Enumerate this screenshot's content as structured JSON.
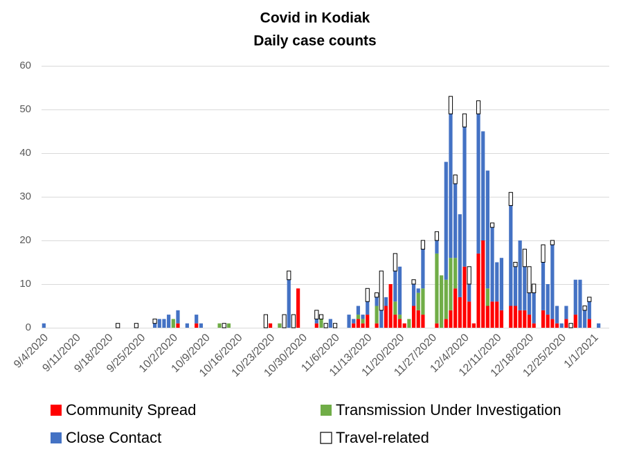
{
  "chart_data": {
    "type": "stacked_bar",
    "title": "Covid in Kodiak",
    "subtitle": "Daily case counts",
    "categories": [
      "9/4/2020",
      null,
      null,
      null,
      null,
      null,
      null,
      "9/11/2020",
      null,
      null,
      null,
      null,
      null,
      null,
      "9/18/2020",
      null,
      null,
      null,
      null,
      null,
      null,
      "9/25/2020",
      null,
      null,
      null,
      null,
      null,
      null,
      "10/2/2020",
      null,
      null,
      null,
      null,
      null,
      null,
      "10/9/2020",
      null,
      null,
      null,
      null,
      null,
      null,
      "10/16/2020",
      null,
      null,
      null,
      null,
      null,
      null,
      "10/23/2020",
      null,
      null,
      null,
      null,
      null,
      null,
      "10/30/2020",
      null,
      null,
      null,
      null,
      null,
      null,
      "11/6/2020",
      null,
      null,
      null,
      null,
      null,
      null,
      "11/13/2020",
      null,
      null,
      null,
      null,
      null,
      null,
      "11/20/2020",
      null,
      null,
      null,
      null,
      null,
      null,
      "11/27/2020",
      null,
      null,
      null,
      null,
      null,
      null,
      "12/4/2020",
      null,
      null,
      null,
      null,
      null,
      null,
      "12/11/2020",
      null,
      null,
      null,
      null,
      null,
      null,
      "12/18/2020",
      null,
      null,
      null,
      null,
      null,
      null,
      "12/25/2020",
      null,
      null,
      null,
      null,
      null,
      null,
      "1/1/2021",
      null
    ],
    "series": [
      {
        "name": "Community Spread",
        "color": "#ff0000",
        "values": [
          0,
          0,
          0,
          0,
          0,
          0,
          0,
          0,
          0,
          0,
          0,
          0,
          0,
          0,
          0,
          0,
          0,
          0,
          0,
          0,
          0,
          0,
          0,
          0,
          0,
          0,
          0,
          0,
          0,
          1,
          0,
          0,
          0,
          1,
          0,
          0,
          0,
          0,
          0,
          0,
          0,
          0,
          0,
          0,
          0,
          0,
          0,
          0,
          0,
          1,
          0,
          0,
          0,
          0,
          0,
          9,
          0,
          0,
          0,
          1,
          0,
          0,
          0,
          0,
          0,
          0,
          0,
          1,
          2,
          1,
          3,
          0,
          1,
          0,
          5,
          10,
          3,
          2,
          1,
          0,
          5,
          4,
          3,
          0,
          0,
          1,
          0,
          2,
          4,
          9,
          7,
          14,
          6,
          1,
          17,
          20,
          5,
          6,
          6,
          4,
          0,
          5,
          5,
          4,
          4,
          3,
          1,
          0,
          4,
          3,
          2,
          1,
          0,
          2,
          0,
          3,
          0,
          0,
          2,
          0,
          0
        ]
      },
      {
        "name": "Transmission Under Investigation",
        "color": "#70ad47",
        "values": [
          0,
          0,
          0,
          0,
          0,
          0,
          0,
          0,
          0,
          0,
          0,
          0,
          0,
          0,
          0,
          0,
          0,
          0,
          0,
          0,
          0,
          0,
          0,
          0,
          0,
          0,
          0,
          0,
          2,
          0,
          0,
          0,
          0,
          0,
          0,
          0,
          0,
          0,
          1,
          0,
          1,
          0,
          0,
          0,
          0,
          0,
          0,
          0,
          0,
          0,
          0,
          1,
          0,
          0,
          0,
          0,
          0,
          0,
          0,
          0,
          2,
          0,
          0,
          0,
          0,
          0,
          0,
          0,
          1,
          1,
          0,
          0,
          4,
          0,
          0,
          0,
          3,
          1,
          0,
          2,
          0,
          4,
          6,
          0,
          0,
          16,
          12,
          9,
          12,
          7,
          0,
          0,
          0,
          0,
          0,
          0,
          4,
          0,
          0,
          0,
          0,
          0,
          0,
          0,
          0,
          0,
          0,
          0,
          0,
          0,
          0,
          0,
          0,
          0,
          0,
          0,
          0,
          0,
          0,
          0,
          0
        ]
      },
      {
        "name": "Close Contact",
        "color": "#4472c4",
        "values": [
          1,
          0,
          0,
          0,
          0,
          0,
          0,
          0,
          0,
          0,
          0,
          0,
          0,
          0,
          0,
          0,
          0,
          0,
          0,
          0,
          0,
          0,
          0,
          0,
          1,
          2,
          2,
          3,
          0,
          3,
          0,
          1,
          0,
          2,
          1,
          0,
          0,
          0,
          0,
          0,
          0,
          0,
          0,
          0,
          0,
          0,
          0,
          0,
          0,
          0,
          0,
          0,
          0,
          11,
          0,
          0,
          0,
          0,
          0,
          1,
          0,
          0,
          2,
          0,
          0,
          0,
          3,
          1,
          2,
          1,
          3,
          0,
          2,
          4,
          2,
          0,
          7,
          11,
          0,
          0,
          5,
          1,
          9,
          0,
          0,
          3,
          0,
          27,
          33,
          17,
          19,
          32,
          4,
          0,
          32,
          25,
          27,
          17,
          9,
          12,
          0,
          23,
          9,
          16,
          10,
          5,
          7,
          0,
          11,
          7,
          17,
          4,
          1,
          3,
          0,
          8,
          11,
          4,
          4,
          0,
          1
        ]
      },
      {
        "name": "Travel-related",
        "color": "#ffffff",
        "values": [
          0,
          0,
          0,
          0,
          0,
          0,
          0,
          0,
          0,
          0,
          0,
          0,
          0,
          0,
          0,
          0,
          1,
          0,
          0,
          0,
          1,
          0,
          0,
          0,
          1,
          0,
          0,
          0,
          0,
          0,
          0,
          0,
          0,
          0,
          0,
          0,
          0,
          0,
          0,
          1,
          0,
          0,
          0,
          0,
          0,
          0,
          0,
          0,
          3,
          0,
          0,
          0,
          3,
          2,
          3,
          0,
          0,
          0,
          0,
          2,
          1,
          1,
          0,
          1,
          0,
          0,
          0,
          0,
          0,
          0,
          3,
          0,
          1,
          9,
          0,
          0,
          4,
          0,
          0,
          0,
          1,
          0,
          2,
          0,
          0,
          2,
          0,
          0,
          4,
          2,
          0,
          3,
          4,
          0,
          3,
          0,
          0,
          1,
          0,
          0,
          0,
          3,
          1,
          0,
          4,
          6,
          2,
          0,
          4,
          0,
          1,
          0,
          0,
          0,
          1,
          0,
          0,
          1,
          1,
          0,
          0
        ]
      }
    ],
    "ylim": [
      0,
      60
    ],
    "yticks": [
      0,
      10,
      20,
      30,
      40,
      50,
      60
    ],
    "grid": true,
    "legend": "bottom"
  }
}
